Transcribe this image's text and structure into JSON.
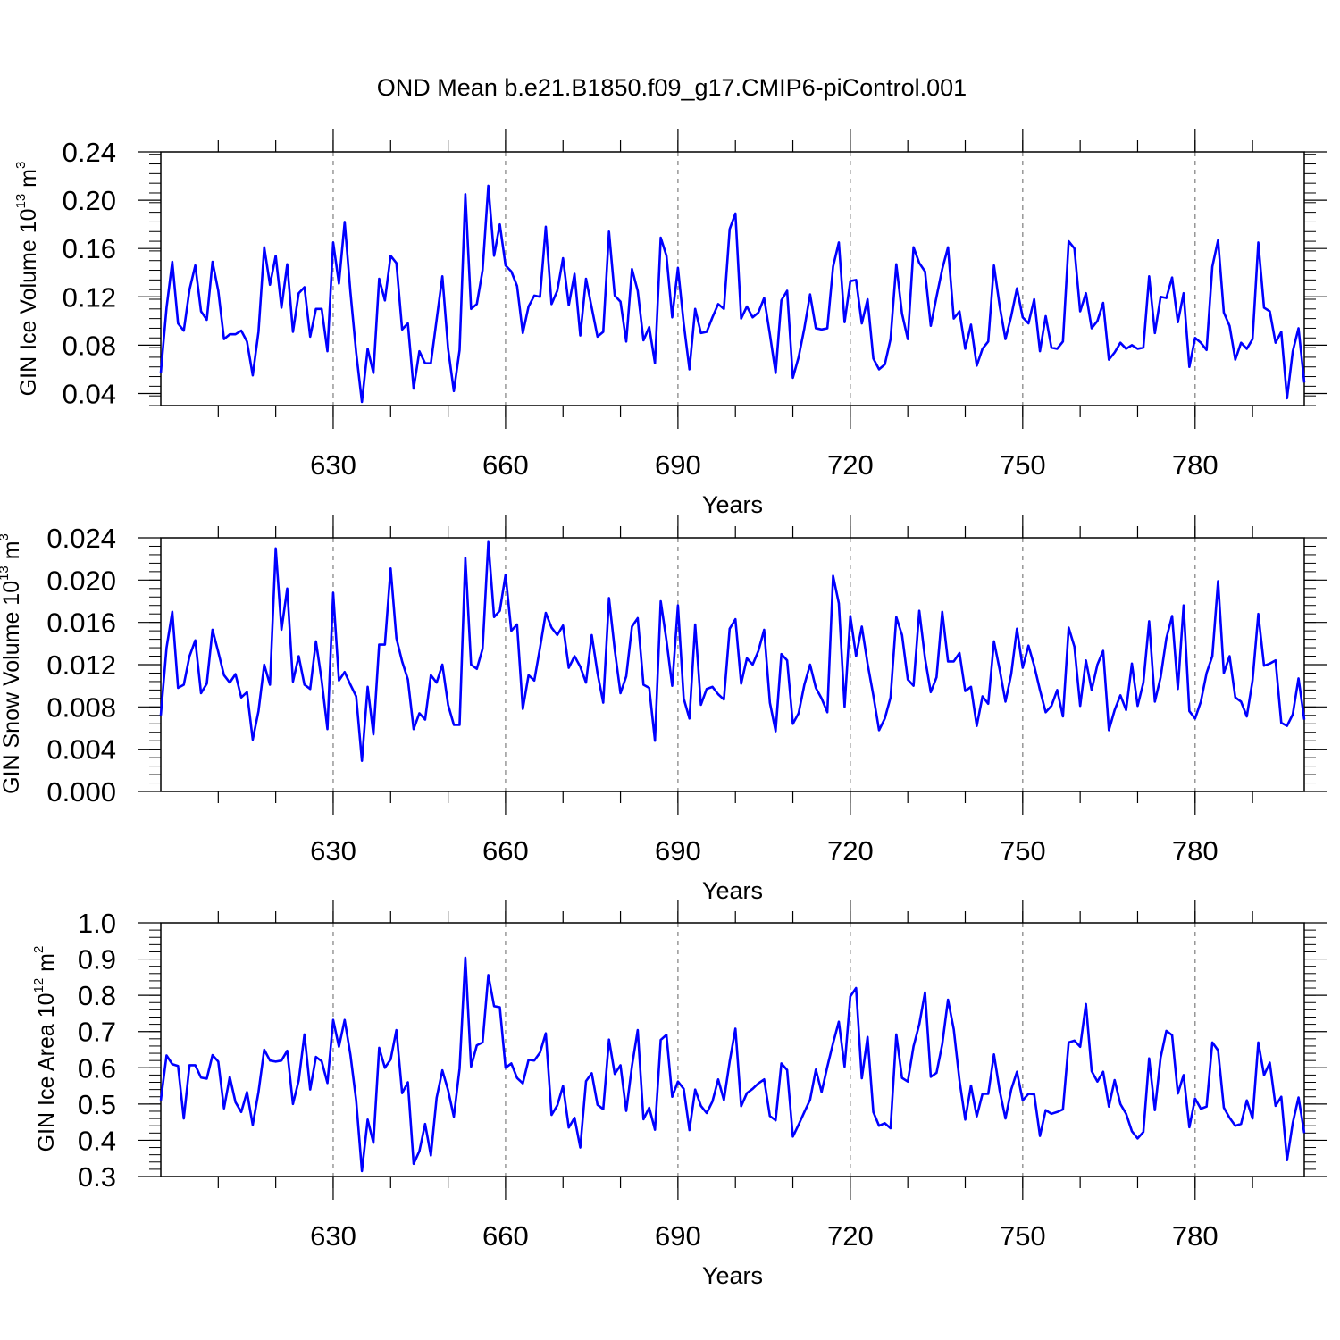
{
  "figure_title": "OND Mean b.e21.B1850.f09_g17.CMIP6-piControl.001",
  "line_color": "#0000ff",
  "chart_data": [
    {
      "type": "line",
      "ylabel_main": "GIN Ice Volume 10",
      "ylabel_exp": "13",
      "ylabel_unit": " m",
      "ylabel_unit_exp": "3",
      "xlabel": "Years",
      "xlim": [
        600,
        799
      ],
      "ylim": [
        0.03,
        0.24
      ],
      "yticks": [
        0.04,
        0.08,
        0.12,
        0.16,
        0.2,
        0.24
      ],
      "ytick_labels": [
        "0.04",
        "0.08",
        "0.12",
        "0.16",
        "0.20",
        "0.24"
      ],
      "xticks": [
        630,
        660,
        690,
        720,
        750,
        780
      ],
      "xtick_labels": [
        "630",
        "660",
        "690",
        "720",
        "750",
        "780"
      ],
      "x_start": 600,
      "values": [
        0.057,
        0.111,
        0.149,
        0.098,
        0.092,
        0.126,
        0.146,
        0.108,
        0.101,
        0.149,
        0.125,
        0.085,
        0.089,
        0.089,
        0.092,
        0.083,
        0.055,
        0.091,
        0.161,
        0.13,
        0.154,
        0.111,
        0.147,
        0.091,
        0.123,
        0.128,
        0.087,
        0.11,
        0.11,
        0.075,
        0.165,
        0.131,
        0.182,
        0.124,
        0.074,
        0.033,
        0.077,
        0.057,
        0.135,
        0.117,
        0.154,
        0.148,
        0.093,
        0.098,
        0.044,
        0.075,
        0.065,
        0.065,
        0.101,
        0.137,
        0.077,
        0.042,
        0.076,
        0.205,
        0.11,
        0.114,
        0.142,
        0.212,
        0.154,
        0.18,
        0.146,
        0.141,
        0.129,
        0.09,
        0.112,
        0.121,
        0.12,
        0.178,
        0.114,
        0.125,
        0.152,
        0.113,
        0.139,
        0.088,
        0.135,
        0.111,
        0.087,
        0.091,
        0.174,
        0.121,
        0.116,
        0.083,
        0.143,
        0.125,
        0.084,
        0.095,
        0.065,
        0.169,
        0.154,
        0.103,
        0.144,
        0.098,
        0.06,
        0.11,
        0.09,
        0.091,
        0.103,
        0.114,
        0.11,
        0.176,
        0.189,
        0.102,
        0.112,
        0.103,
        0.107,
        0.119,
        0.089,
        0.057,
        0.117,
        0.125,
        0.053,
        0.07,
        0.094,
        0.122,
        0.094,
        0.093,
        0.094,
        0.145,
        0.165,
        0.099,
        0.133,
        0.134,
        0.098,
        0.118,
        0.069,
        0.06,
        0.064,
        0.085,
        0.147,
        0.106,
        0.085,
        0.161,
        0.148,
        0.141,
        0.096,
        0.12,
        0.143,
        0.161,
        0.102,
        0.108,
        0.077,
        0.097,
        0.063,
        0.077,
        0.083,
        0.146,
        0.112,
        0.085,
        0.104,
        0.127,
        0.103,
        0.098,
        0.118,
        0.075,
        0.104,
        0.078,
        0.077,
        0.083,
        0.166,
        0.16,
        0.108,
        0.123,
        0.094,
        0.1,
        0.115,
        0.068,
        0.074,
        0.082,
        0.077,
        0.08,
        0.077,
        0.078,
        0.137,
        0.09,
        0.12,
        0.119,
        0.136,
        0.099,
        0.123,
        0.062,
        0.086,
        0.082,
        0.076,
        0.145,
        0.167,
        0.107,
        0.096,
        0.068,
        0.082,
        0.077,
        0.085,
        0.165,
        0.111,
        0.108,
        0.082,
        0.091,
        0.036,
        0.075,
        0.094,
        0.049
      ]
    },
    {
      "type": "line",
      "ylabel_main": "GIN Snow Volume 10",
      "ylabel_exp": "13",
      "ylabel_unit": " m",
      "ylabel_unit_exp": "3",
      "xlabel": "Years",
      "xlim": [
        600,
        799
      ],
      "ylim": [
        0.0,
        0.024
      ],
      "yticks": [
        0.0,
        0.004,
        0.008,
        0.012,
        0.016,
        0.02,
        0.024
      ],
      "ytick_labels": [
        "0.000",
        "0.004",
        "0.008",
        "0.012",
        "0.016",
        "0.020",
        "0.024"
      ],
      "xticks": [
        630,
        660,
        690,
        720,
        750,
        780
      ],
      "xtick_labels": [
        "630",
        "660",
        "690",
        "720",
        "750",
        "780"
      ],
      "x_start": 600,
      "values": [
        0.0072,
        0.0136,
        0.017,
        0.0098,
        0.0101,
        0.0128,
        0.0143,
        0.0093,
        0.0102,
        0.0153,
        0.0132,
        0.011,
        0.0103,
        0.0111,
        0.0089,
        0.0094,
        0.0049,
        0.0076,
        0.012,
        0.0101,
        0.023,
        0.0153,
        0.0192,
        0.0104,
        0.0128,
        0.0101,
        0.0097,
        0.0142,
        0.0105,
        0.0059,
        0.0188,
        0.0105,
        0.0113,
        0.0101,
        0.009,
        0.0029,
        0.0099,
        0.0054,
        0.0139,
        0.0139,
        0.0211,
        0.0145,
        0.0123,
        0.0106,
        0.0059,
        0.0074,
        0.0068,
        0.011,
        0.0103,
        0.012,
        0.0082,
        0.0063,
        0.0063,
        0.0221,
        0.012,
        0.0116,
        0.0135,
        0.0236,
        0.0165,
        0.0171,
        0.0205,
        0.0152,
        0.0158,
        0.0078,
        0.011,
        0.0105,
        0.0136,
        0.0169,
        0.0155,
        0.0148,
        0.0157,
        0.0117,
        0.0128,
        0.0118,
        0.0103,
        0.0148,
        0.0112,
        0.0084,
        0.0183,
        0.0134,
        0.0093,
        0.0109,
        0.0156,
        0.0164,
        0.0101,
        0.0098,
        0.0048,
        0.018,
        0.0143,
        0.01,
        0.0176,
        0.0088,
        0.0069,
        0.0158,
        0.0082,
        0.0097,
        0.0099,
        0.0092,
        0.0087,
        0.0154,
        0.0163,
        0.0102,
        0.0126,
        0.012,
        0.0133,
        0.0153,
        0.0084,
        0.0057,
        0.013,
        0.0124,
        0.0064,
        0.0074,
        0.0101,
        0.012,
        0.0098,
        0.0088,
        0.0075,
        0.0204,
        0.0178,
        0.008,
        0.0166,
        0.0128,
        0.0156,
        0.0121,
        0.0091,
        0.0058,
        0.0069,
        0.0089,
        0.0165,
        0.0148,
        0.0106,
        0.01,
        0.0171,
        0.0126,
        0.0094,
        0.0108,
        0.017,
        0.0123,
        0.0123,
        0.0131,
        0.0095,
        0.0099,
        0.0062,
        0.009,
        0.0083,
        0.0142,
        0.0115,
        0.0085,
        0.0111,
        0.0154,
        0.0117,
        0.0138,
        0.0119,
        0.0096,
        0.0075,
        0.0081,
        0.0096,
        0.0071,
        0.0155,
        0.0137,
        0.0081,
        0.0124,
        0.0096,
        0.012,
        0.0133,
        0.0058,
        0.0077,
        0.0091,
        0.0077,
        0.0121,
        0.0081,
        0.0103,
        0.0161,
        0.0085,
        0.0108,
        0.0145,
        0.0166,
        0.0097,
        0.0176,
        0.0076,
        0.0069,
        0.0085,
        0.0112,
        0.0128,
        0.0199,
        0.0112,
        0.0128,
        0.0089,
        0.0085,
        0.0071,
        0.0105,
        0.0168,
        0.0119,
        0.0121,
        0.0124,
        0.0065,
        0.0062,
        0.0073,
        0.0107,
        0.0068
      ]
    },
    {
      "type": "line",
      "ylabel_main": "GIN Ice Area 10",
      "ylabel_exp": "12",
      "ylabel_unit": " m",
      "ylabel_unit_exp": "2",
      "xlabel": "Years",
      "xlim": [
        600,
        799
      ],
      "ylim": [
        0.3,
        1.0
      ],
      "yticks": [
        0.3,
        0.4,
        0.5,
        0.6,
        0.7,
        0.8,
        0.9,
        1.0
      ],
      "ytick_labels": [
        "0.3",
        "0.4",
        "0.5",
        "0.6",
        "0.7",
        "0.8",
        "0.9",
        "1.0"
      ],
      "xticks": [
        630,
        660,
        690,
        720,
        750,
        780
      ],
      "xtick_labels": [
        "630",
        "660",
        "690",
        "720",
        "750",
        "780"
      ],
      "x_start": 600,
      "values": [
        0.51,
        0.634,
        0.61,
        0.605,
        0.46,
        0.607,
        0.607,
        0.573,
        0.57,
        0.635,
        0.617,
        0.488,
        0.575,
        0.505,
        0.478,
        0.533,
        0.442,
        0.533,
        0.65,
        0.62,
        0.617,
        0.62,
        0.647,
        0.5,
        0.565,
        0.692,
        0.54,
        0.63,
        0.618,
        0.558,
        0.732,
        0.658,
        0.732,
        0.636,
        0.51,
        0.315,
        0.457,
        0.393,
        0.655,
        0.6,
        0.623,
        0.704,
        0.53,
        0.56,
        0.335,
        0.37,
        0.445,
        0.358,
        0.517,
        0.593,
        0.538,
        0.465,
        0.598,
        0.904,
        0.603,
        0.662,
        0.67,
        0.856,
        0.77,
        0.767,
        0.6,
        0.612,
        0.572,
        0.557,
        0.622,
        0.62,
        0.642,
        0.695,
        0.47,
        0.496,
        0.55,
        0.435,
        0.462,
        0.38,
        0.563,
        0.585,
        0.498,
        0.486,
        0.678,
        0.583,
        0.607,
        0.481,
        0.605,
        0.704,
        0.458,
        0.49,
        0.429,
        0.677,
        0.691,
        0.52,
        0.562,
        0.542,
        0.428,
        0.54,
        0.495,
        0.475,
        0.507,
        0.568,
        0.511,
        0.617,
        0.708,
        0.494,
        0.53,
        0.542,
        0.557,
        0.568,
        0.467,
        0.455,
        0.612,
        0.594,
        0.41,
        0.443,
        0.478,
        0.512,
        0.595,
        0.533,
        0.603,
        0.668,
        0.727,
        0.603,
        0.797,
        0.82,
        0.571,
        0.685,
        0.478,
        0.44,
        0.447,
        0.433,
        0.692,
        0.572,
        0.562,
        0.659,
        0.72,
        0.808,
        0.575,
        0.586,
        0.665,
        0.788,
        0.706,
        0.565,
        0.457,
        0.551,
        0.466,
        0.528,
        0.528,
        0.637,
        0.536,
        0.46,
        0.54,
        0.589,
        0.51,
        0.528,
        0.527,
        0.412,
        0.483,
        0.473,
        0.478,
        0.485,
        0.67,
        0.675,
        0.658,
        0.776,
        0.591,
        0.562,
        0.589,
        0.493,
        0.566,
        0.5,
        0.473,
        0.425,
        0.405,
        0.423,
        0.626,
        0.483,
        0.628,
        0.702,
        0.69,
        0.529,
        0.58,
        0.436,
        0.515,
        0.487,
        0.493,
        0.67,
        0.648,
        0.49,
        0.462,
        0.44,
        0.445,
        0.51,
        0.46,
        0.67,
        0.58,
        0.614,
        0.495,
        0.52,
        0.345,
        0.448,
        0.518,
        0.42
      ]
    }
  ]
}
